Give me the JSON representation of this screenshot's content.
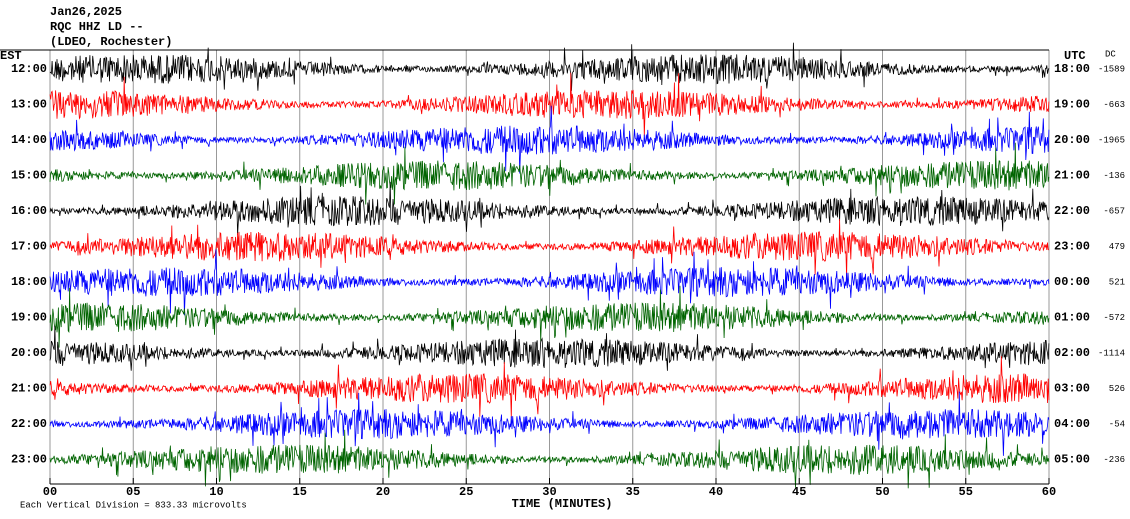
{
  "chart_data": {
    "type": "helicorder",
    "title_lines": [
      "Jan26,2025",
      "RQC HHZ LD --",
      "(LDEO, Rochester)"
    ],
    "left_axis_title": "EST",
    "right_axis_title": "UTC",
    "dc_title": "DC",
    "xlabel": "TIME (MINUTES)",
    "footer": "Each Vertical Division = 833.33 microvolts",
    "xlim": [
      0,
      60
    ],
    "xticks": [
      {
        "value": 0,
        "label": "00"
      },
      {
        "value": 5,
        "label": "05"
      },
      {
        "value": 10,
        "label": "10"
      },
      {
        "value": 15,
        "label": "15"
      },
      {
        "value": 20,
        "label": "20"
      },
      {
        "value": 25,
        "label": "25"
      },
      {
        "value": 30,
        "label": "30"
      },
      {
        "value": 35,
        "label": "35"
      },
      {
        "value": 40,
        "label": "40"
      },
      {
        "value": 45,
        "label": "45"
      },
      {
        "value": 50,
        "label": "50"
      },
      {
        "value": 55,
        "label": "55"
      },
      {
        "value": 60,
        "label": "60"
      }
    ],
    "grid": true,
    "colors": [
      "#000000",
      "#ff0000",
      "#0000ff",
      "#006400"
    ],
    "rows": [
      {
        "est": "12:00",
        "utc": "18:00",
        "dc": -1589
      },
      {
        "est": "13:00",
        "utc": "19:00",
        "dc": -663
      },
      {
        "est": "14:00",
        "utc": "20:00",
        "dc": -1965
      },
      {
        "est": "15:00",
        "utc": "21:00",
        "dc": -136
      },
      {
        "est": "16:00",
        "utc": "22:00",
        "dc": -657
      },
      {
        "est": "17:00",
        "utc": "23:00",
        "dc": 479
      },
      {
        "est": "18:00",
        "utc": "00:00",
        "dc": 521
      },
      {
        "est": "19:00",
        "utc": "01:00",
        "dc": -572
      },
      {
        "est": "20:00",
        "utc": "02:00",
        "dc": -1114
      },
      {
        "est": "21:00",
        "utc": "03:00",
        "dc": 526
      },
      {
        "est": "22:00",
        "utc": "04:00",
        "dc": -54
      },
      {
        "est": "23:00",
        "utc": "05:00",
        "dc": -236
      }
    ]
  }
}
